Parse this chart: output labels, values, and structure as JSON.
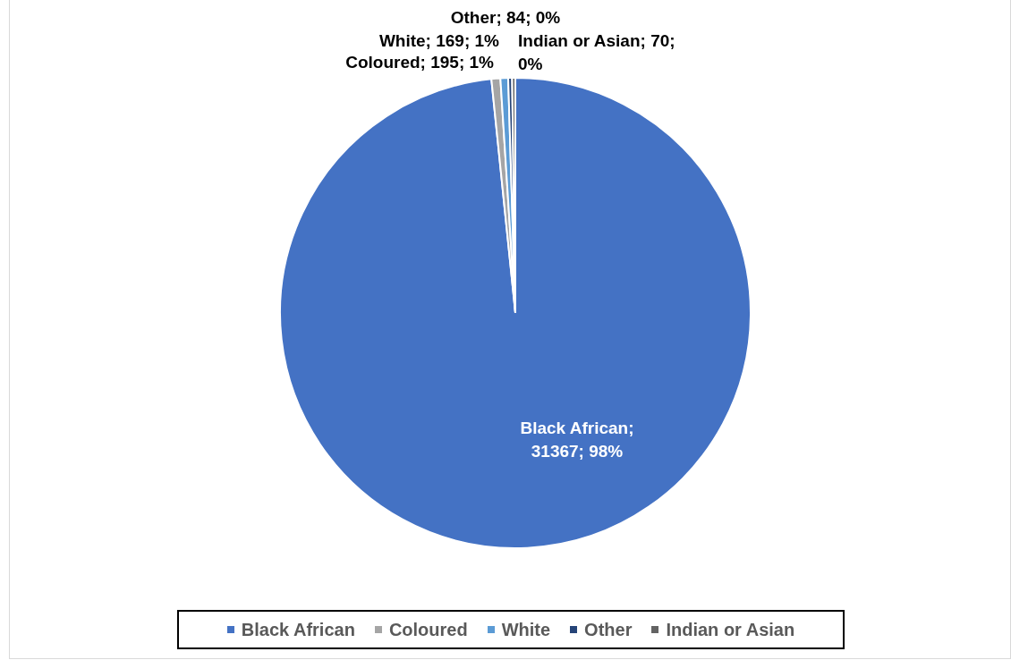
{
  "chart_data": {
    "type": "pie",
    "categories": [
      "Black African",
      "Coloured",
      "White",
      "Other",
      "Indian or Asian"
    ],
    "values": [
      31367,
      195,
      169,
      84,
      70
    ],
    "colors": [
      "#4472c4",
      "#a5a5a5",
      "#5b9bd5",
      "#264478",
      "#636363"
    ],
    "value_labels": [
      "Black African; 31367; 98%",
      "Coloured; 195; 1%",
      "White; 169; 1%",
      "Other; 84; 0%",
      "Indian or Asian; 70; 0%"
    ],
    "legend": "bottom"
  }
}
